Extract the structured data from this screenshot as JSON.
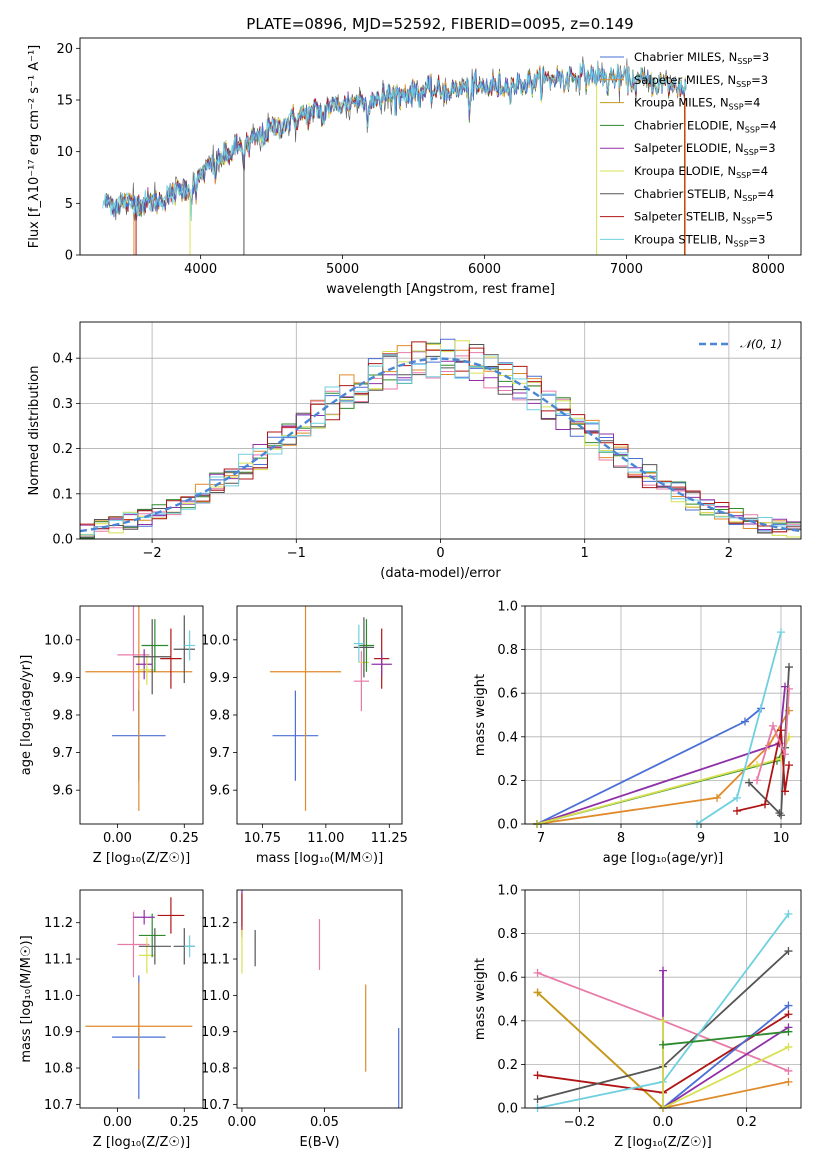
{
  "figure": {
    "title": "PLATE=0896, MJD=52592, FIBERID=0095, z=0.149"
  },
  "colors": {
    "chabrier_miles": "#4a6fd6",
    "salpeter_miles": "#e08a2a",
    "kroupa_miles": "#c49a1a",
    "chabrier_elodie": "#2e8a2e",
    "salpeter_elodie": "#9030a8",
    "kroupa_elodie": "#d8e050",
    "chabrier_stelib": "#555555",
    "salpeter_stelib": "#b01515",
    "kroupa_stelib": "#6fd0e0",
    "pink": "#e87aa8",
    "gauss": "#4a86d6"
  },
  "chart_data": [
    {
      "id": "spectrum",
      "type": "line",
      "xlabel": "wavelength [Angstrom, rest frame]",
      "ylabel": "Flux [f_λ10⁻¹⁷ erg cm⁻² s⁻¹ A⁻¹]",
      "xlim": [
        3150,
        8230
      ],
      "ylim": [
        0,
        21
      ],
      "xticks": [
        4000,
        5000,
        6000,
        7000,
        8000
      ],
      "yticks": [
        0,
        5,
        10,
        15,
        20
      ],
      "grid": false,
      "legend_position": "right",
      "legend": [
        {
          "label": "Chabrier MILES, N",
          "sub": "SSP",
          "tail": "=3",
          "color": "chabrier_miles"
        },
        {
          "label": "Salpeter MILES, N",
          "sub": "SSP",
          "tail": "=3",
          "color": "salpeter_miles"
        },
        {
          "label": "Kroupa MILES, N",
          "sub": "SSP",
          "tail": "=4",
          "color": "kroupa_miles"
        },
        {
          "label": "Chabrier ELODIE, N",
          "sub": "SSP",
          "tail": "=4",
          "color": "chabrier_elodie"
        },
        {
          "label": "Salpeter ELODIE, N",
          "sub": "SSP",
          "tail": "=3",
          "color": "salpeter_elodie"
        },
        {
          "label": "Kroupa ELODIE, N",
          "sub": "SSP",
          "tail": "=4",
          "color": "kroupa_elodie"
        },
        {
          "label": "Chabrier STELIB, N",
          "sub": "SSP",
          "tail": "=4",
          "color": "chabrier_stelib"
        },
        {
          "label": "Salpeter STELIB, N",
          "sub": "SSP",
          "tail": "=5",
          "color": "salpeter_stelib"
        },
        {
          "label": "Kroupa STELIB, N",
          "sub": "SSP",
          "tail": "=3",
          "color": "kroupa_stelib"
        }
      ],
      "continuum_x": [
        3300,
        3500,
        3700,
        3900,
        4000,
        4100,
        4300,
        4500,
        4700,
        4900,
        5100,
        5300,
        5500,
        5700,
        5900,
        6100,
        6300,
        6500,
        6700,
        6900,
        7100,
        7300,
        7420
      ],
      "continuum_y": [
        5.1,
        5.0,
        5.2,
        6.6,
        7.7,
        8.9,
        10.7,
        12.1,
        13.4,
        14.3,
        14.9,
        15.4,
        15.7,
        15.9,
        16.1,
        16.3,
        16.6,
        17.1,
        17.4,
        17.3,
        16.8,
        16.4,
        16.2
      ]
    },
    {
      "id": "residuals",
      "type": "histogram",
      "xlabel": "(data-model)/error",
      "ylabel": "Normed distribution",
      "xlim": [
        -2.5,
        2.5
      ],
      "ylim": [
        0,
        0.48
      ],
      "xticks": [
        -2,
        -1,
        0,
        1,
        2
      ],
      "yticks": [
        0.0,
        0.1,
        0.2,
        0.3,
        0.4
      ],
      "grid": true,
      "legend_position": "top-right",
      "legend": [
        {
          "label": "𝒩(0, 1)",
          "color": "gauss",
          "style": "dashed"
        }
      ],
      "bins": 50
    },
    {
      "id": "age_vs_Z",
      "type": "scatter",
      "xlabel": "Z [log₁₀(Z/Z☉)]",
      "ylabel": "age  [log₁₀(age/yr)]",
      "xlim": [
        -0.14,
        0.32
      ],
      "ylim": [
        9.51,
        10.09
      ],
      "xticks": [
        0.0,
        0.25
      ],
      "yticks": [
        9.6,
        9.7,
        9.8,
        9.9,
        10.0
      ],
      "grid": false,
      "points": [
        {
          "x": 0.08,
          "xerr": 0.1,
          "y": 9.745,
          "yerr": 0.12,
          "color": "chabrier_miles"
        },
        {
          "x": 0.08,
          "xerr": 0.2,
          "y": 9.915,
          "yerr": 0.37,
          "color": "salpeter_miles"
        },
        {
          "x": 0.06,
          "xerr": 0.06,
          "y": 9.96,
          "yerr": 0.15,
          "color": "pink"
        },
        {
          "x": 0.1,
          "xerr": 0.03,
          "y": 9.935,
          "yerr": 0.04,
          "color": "salpeter_elodie"
        },
        {
          "x": 0.11,
          "xerr": 0.03,
          "y": 9.92,
          "yerr": 0.04,
          "color": "kroupa_elodie"
        },
        {
          "x": 0.14,
          "xerr": 0.05,
          "y": 9.985,
          "yerr": 0.07,
          "color": "chabrier_elodie"
        },
        {
          "x": 0.13,
          "xerr": 0.07,
          "y": 9.955,
          "yerr": 0.1,
          "color": "chabrier_stelib"
        },
        {
          "x": 0.2,
          "xerr": 0.04,
          "y": 9.95,
          "yerr": 0.08,
          "color": "salpeter_stelib"
        },
        {
          "x": 0.25,
          "xerr": 0.04,
          "y": 9.975,
          "yerr": 0.09,
          "color": "chabrier_stelib"
        },
        {
          "x": 0.27,
          "xerr": 0.02,
          "y": 9.985,
          "yerr": 0.04,
          "color": "kroupa_stelib"
        }
      ]
    },
    {
      "id": "age_vs_mass",
      "type": "scatter",
      "xlabel": "mass [log₁₀(M/M☉)]",
      "ylabel": "",
      "xlim": [
        10.65,
        11.3
      ],
      "ylim": [
        9.51,
        10.09
      ],
      "xticks": [
        10.75,
        11.0,
        11.25
      ],
      "yticks": [
        9.6,
        9.7,
        9.8,
        9.9,
        10.0
      ],
      "grid": false,
      "points": [
        {
          "x": 10.88,
          "xerr": 0.09,
          "y": 9.745,
          "yerr": 0.12,
          "color": "chabrier_miles"
        },
        {
          "x": 10.92,
          "xerr": 0.14,
          "y": 9.915,
          "yerr": 0.37,
          "color": "salpeter_miles"
        },
        {
          "x": 11.14,
          "xerr": 0.03,
          "y": 9.89,
          "yerr": 0.08,
          "color": "pink"
        },
        {
          "x": 11.15,
          "xerr": 0.02,
          "y": 9.94,
          "yerr": 0.04,
          "color": "kroupa_elodie"
        },
        {
          "x": 11.16,
          "xerr": 0.03,
          "y": 9.985,
          "yerr": 0.07,
          "color": "chabrier_elodie"
        },
        {
          "x": 11.15,
          "xerr": 0.04,
          "y": 9.98,
          "yerr": 0.08,
          "color": "chabrier_stelib"
        },
        {
          "x": 11.22,
          "xerr": 0.03,
          "y": 9.95,
          "yerr": 0.08,
          "color": "salpeter_stelib"
        },
        {
          "x": 11.22,
          "xerr": 0.04,
          "y": 9.935,
          "yerr": 0.03,
          "color": "salpeter_elodie"
        },
        {
          "x": 11.13,
          "xerr": 0.02,
          "y": 9.99,
          "yerr": 0.05,
          "color": "kroupa_stelib"
        }
      ]
    },
    {
      "id": "weight_vs_age",
      "type": "line",
      "xlabel": "age  [log₁₀(age/yr)]",
      "ylabel": "mass weight",
      "xlim": [
        6.8,
        10.25
      ],
      "ylim": [
        0,
        1.0
      ],
      "xticks": [
        7,
        8,
        9,
        10
      ],
      "yticks": [
        0.0,
        0.2,
        0.4,
        0.6,
        0.8,
        1.0
      ],
      "grid": true,
      "series": [
        {
          "color": "chabrier_miles",
          "x": [
            6.95,
            9.55,
            9.75
          ],
          "y": [
            0.0,
            0.47,
            0.53
          ]
        },
        {
          "color": "salpeter_miles",
          "x": [
            6.95,
            9.2,
            9.85,
            10.1
          ],
          "y": [
            0.0,
            0.12,
            0.36,
            0.52
          ]
        },
        {
          "color": "salpeter_elodie",
          "x": [
            6.95,
            9.98,
            10.05
          ],
          "y": [
            0.0,
            0.37,
            0.63
          ]
        },
        {
          "color": "chabrier_elodie",
          "x": [
            6.95,
            9.95,
            10.05
          ],
          "y": [
            0.0,
            0.29,
            0.35
          ]
        },
        {
          "color": "kroupa_elodie",
          "x": [
            6.95,
            9.7,
            10.0,
            10.1
          ],
          "y": [
            0.0,
            0.27,
            0.3,
            0.4
          ]
        },
        {
          "color": "kroupa_stelib",
          "x": [
            8.95,
            9.45,
            10.0
          ],
          "y": [
            0.0,
            0.12,
            0.88
          ]
        },
        {
          "color": "chabrier_stelib",
          "x": [
            9.6,
            9.98,
            10.0,
            10.1
          ],
          "y": [
            0.19,
            0.05,
            0.04,
            0.72
          ]
        },
        {
          "color": "salpeter_stelib",
          "x": [
            9.45,
            9.8,
            10.0,
            10.05,
            10.1
          ],
          "y": [
            0.06,
            0.09,
            0.43,
            0.15,
            0.27
          ]
        },
        {
          "color": "pink",
          "x": [
            9.7,
            9.9,
            10.05,
            10.1
          ],
          "y": [
            0.2,
            0.45,
            0.32,
            0.62
          ]
        }
      ]
    },
    {
      "id": "mass_vs_Z",
      "type": "scatter",
      "xlabel": "Z [log₁₀(Z/Z☉)]",
      "ylabel": "mass [log₁₀(M/M☉)]",
      "xlim": [
        -0.14,
        0.32
      ],
      "ylim": [
        10.69,
        11.29
      ],
      "xticks": [
        0.0,
        0.25
      ],
      "yticks": [
        10.7,
        10.8,
        10.9,
        11.0,
        11.1,
        11.2
      ],
      "grid": false,
      "points": [
        {
          "x": 0.08,
          "xerr": 0.1,
          "y": 10.885,
          "yerr": 0.17,
          "color": "chabrier_miles"
        },
        {
          "x": 0.08,
          "xerr": 0.2,
          "y": 10.915,
          "yerr": 0.12,
          "color": "salpeter_miles"
        },
        {
          "x": 0.06,
          "xerr": 0.06,
          "y": 11.14,
          "yerr": 0.09,
          "color": "pink"
        },
        {
          "x": 0.11,
          "xerr": 0.03,
          "y": 11.11,
          "yerr": 0.05,
          "color": "kroupa_elodie"
        },
        {
          "x": 0.13,
          "xerr": 0.05,
          "y": 11.165,
          "yerr": 0.06,
          "color": "chabrier_elodie"
        },
        {
          "x": 0.14,
          "xerr": 0.06,
          "y": 11.135,
          "yerr": 0.05,
          "color": "chabrier_stelib"
        },
        {
          "x": 0.1,
          "xerr": 0.04,
          "y": 11.215,
          "yerr": 0.02,
          "color": "salpeter_elodie"
        },
        {
          "x": 0.2,
          "xerr": 0.05,
          "y": 11.22,
          "yerr": 0.05,
          "color": "salpeter_stelib"
        },
        {
          "x": 0.25,
          "xerr": 0.04,
          "y": 11.135,
          "yerr": 0.05,
          "color": "chabrier_stelib"
        },
        {
          "x": 0.27,
          "xerr": 0.02,
          "y": 11.135,
          "yerr": 0.03,
          "color": "kroupa_stelib"
        }
      ]
    },
    {
      "id": "mass_vs_ebv",
      "type": "scatter",
      "xlabel": "E(B-V)",
      "ylabel": "",
      "xlim": [
        -0.003,
        0.097
      ],
      "ylim": [
        10.69,
        11.29
      ],
      "xticks": [
        0.0,
        0.05
      ],
      "yticks": [
        10.7,
        10.8,
        10.9,
        11.0,
        11.1,
        11.2
      ],
      "grid": false,
      "points": [
        {
          "x": 0.0,
          "xerr": 0,
          "y": 11.25,
          "yerr": 0.06,
          "color": "salpeter_elodie"
        },
        {
          "x": 0.0,
          "xerr": 0,
          "y": 11.22,
          "yerr": 0.06,
          "color": "salpeter_stelib"
        },
        {
          "x": 0.0,
          "xerr": 0,
          "y": 11.12,
          "yerr": 0.06,
          "color": "kroupa_elodie"
        },
        {
          "x": 0.008,
          "xerr": 0,
          "y": 11.13,
          "yerr": 0.05,
          "color": "chabrier_stelib"
        },
        {
          "x": 0.047,
          "xerr": 0,
          "y": 11.14,
          "yerr": 0.07,
          "color": "pink"
        },
        {
          "x": 0.075,
          "xerr": 0,
          "y": 10.91,
          "yerr": 0.12,
          "color": "salpeter_miles"
        },
        {
          "x": 0.095,
          "xerr": 0,
          "y": 10.79,
          "yerr": 0.12,
          "color": "chabrier_miles"
        }
      ]
    },
    {
      "id": "weight_vs_Z",
      "type": "line",
      "xlabel": "Z [log₁₀(Z/Z☉)]",
      "ylabel": "mass weight",
      "xlim": [
        -0.33,
        0.33
      ],
      "ylim": [
        0,
        1.0
      ],
      "xticks": [
        -0.2,
        0.0,
        0.2
      ],
      "yticks": [
        0.0,
        0.2,
        0.4,
        0.6,
        0.8,
        1.0
      ],
      "grid": true,
      "series": [
        {
          "color": "salpeter_miles",
          "x": [
            -0.3,
            0.0,
            0.3
          ],
          "y": [
            0.53,
            0.0,
            0.12
          ]
        },
        {
          "color": "pink",
          "x": [
            -0.3,
            0.0,
            0.3
          ],
          "y": [
            0.62,
            0.4,
            0.17
          ]
        },
        {
          "color": "kroupa_miles",
          "x": [
            -0.3,
            0.0
          ],
          "y": [
            0.53,
            0.0
          ]
        },
        {
          "color": "salpeter_stelib",
          "x": [
            -0.3,
            0.0,
            0.3
          ],
          "y": [
            0.15,
            0.07,
            0.43
          ]
        },
        {
          "color": "chabrier_stelib",
          "x": [
            -0.3,
            0.0,
            0.3
          ],
          "y": [
            0.04,
            0.19,
            0.72
          ]
        },
        {
          "color": "kroupa_stelib",
          "x": [
            -0.3,
            0.0,
            0.3
          ],
          "y": [
            0.0,
            0.12,
            0.89
          ]
        },
        {
          "color": "chabrier_miles",
          "x": [
            0.0,
            0.3
          ],
          "y": [
            0.0,
            0.47
          ]
        },
        {
          "color": "salpeter_elodie",
          "x": [
            0.0,
            0.0,
            0.3
          ],
          "y": [
            0.63,
            0.0,
            0.37
          ]
        },
        {
          "color": "kroupa_elodie",
          "x": [
            0.0,
            0.0,
            0.3
          ],
          "y": [
            0.4,
            0.0,
            0.28
          ]
        },
        {
          "color": "chabrier_elodie",
          "x": [
            0.0,
            0.3
          ],
          "y": [
            0.29,
            0.35
          ]
        }
      ]
    }
  ]
}
